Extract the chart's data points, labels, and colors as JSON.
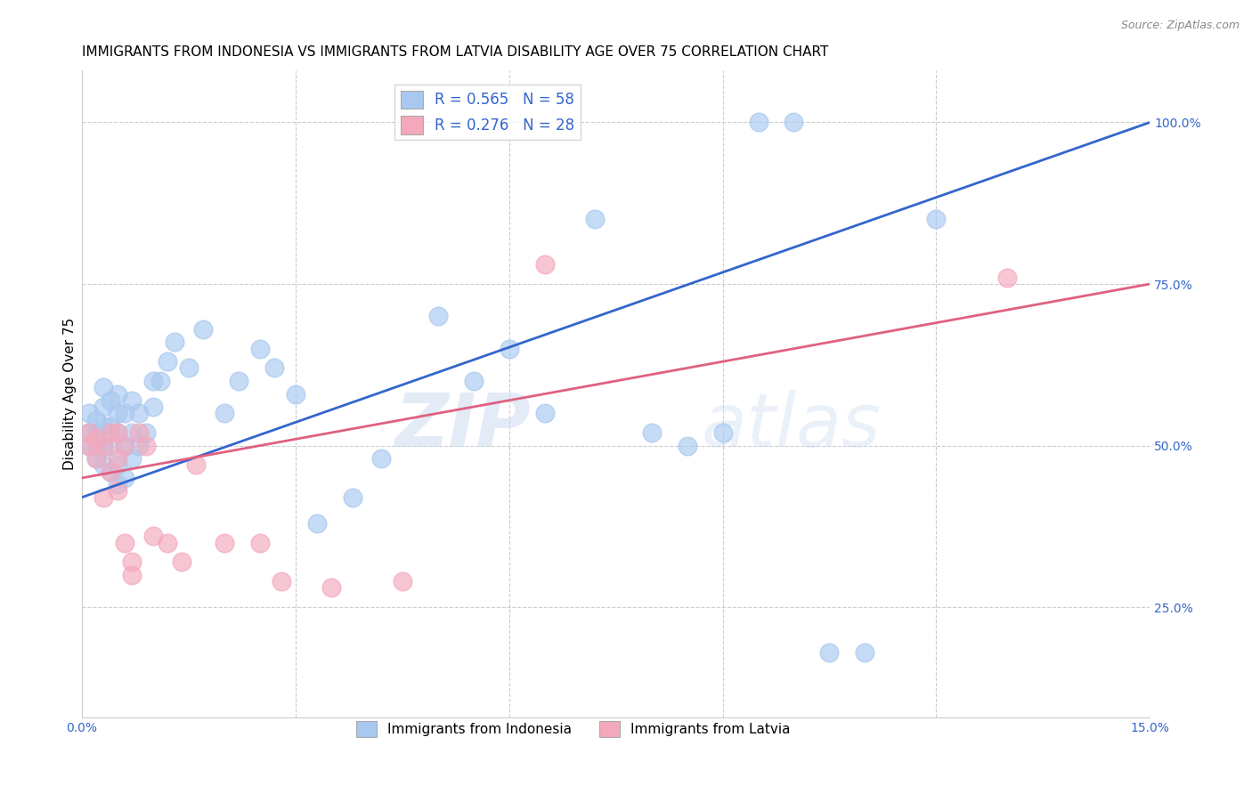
{
  "title": "IMMIGRANTS FROM INDONESIA VS IMMIGRANTS FROM LATVIA DISABILITY AGE OVER 75 CORRELATION CHART",
  "source_text": "Source: ZipAtlas.com",
  "ylabel": "Disability Age Over 75",
  "xlim": [
    0.0,
    0.15
  ],
  "ylim": [
    0.08,
    1.08
  ],
  "indonesia_color": "#A8C8F0",
  "latvia_color": "#F4A8BC",
  "indonesia_line_color": "#3366CC",
  "latvia_line_color": "#E06080",
  "R_indonesia": 0.565,
  "N_indonesia": 58,
  "R_latvia": 0.276,
  "N_latvia": 28,
  "legend_label_indonesia": "Immigrants from Indonesia",
  "legend_label_latvia": "Immigrants from Latvia",
  "watermark_text": "ZIPatlas",
  "indonesia_x": [
    0.001,
    0.001,
    0.001,
    0.002,
    0.002,
    0.002,
    0.002,
    0.003,
    0.003,
    0.003,
    0.003,
    0.003,
    0.004,
    0.004,
    0.004,
    0.004,
    0.005,
    0.005,
    0.005,
    0.005,
    0.005,
    0.006,
    0.006,
    0.006,
    0.007,
    0.007,
    0.007,
    0.008,
    0.008,
    0.009,
    0.01,
    0.01,
    0.011,
    0.012,
    0.013,
    0.015,
    0.017,
    0.02,
    0.022,
    0.025,
    0.027,
    0.03,
    0.033,
    0.038,
    0.042,
    0.05,
    0.055,
    0.06,
    0.065,
    0.072,
    0.08,
    0.085,
    0.09,
    0.095,
    0.1,
    0.105,
    0.11,
    0.12
  ],
  "indonesia_y": [
    0.5,
    0.52,
    0.55,
    0.48,
    0.5,
    0.52,
    0.54,
    0.47,
    0.5,
    0.53,
    0.56,
    0.59,
    0.46,
    0.5,
    0.53,
    0.57,
    0.44,
    0.47,
    0.52,
    0.55,
    0.58,
    0.45,
    0.5,
    0.55,
    0.48,
    0.52,
    0.57,
    0.5,
    0.55,
    0.52,
    0.56,
    0.6,
    0.6,
    0.63,
    0.66,
    0.62,
    0.68,
    0.55,
    0.6,
    0.65,
    0.62,
    0.58,
    0.38,
    0.42,
    0.48,
    0.7,
    0.6,
    0.65,
    0.55,
    0.85,
    0.52,
    0.5,
    0.52,
    1.0,
    1.0,
    0.18,
    0.18,
    0.85
  ],
  "latvia_x": [
    0.001,
    0.001,
    0.002,
    0.002,
    0.003,
    0.003,
    0.004,
    0.004,
    0.005,
    0.005,
    0.005,
    0.006,
    0.006,
    0.007,
    0.007,
    0.008,
    0.009,
    0.01,
    0.012,
    0.014,
    0.016,
    0.02,
    0.025,
    0.028,
    0.035,
    0.045,
    0.065,
    0.13
  ],
  "latvia_y": [
    0.5,
    0.52,
    0.48,
    0.51,
    0.42,
    0.5,
    0.46,
    0.52,
    0.43,
    0.48,
    0.52,
    0.35,
    0.5,
    0.3,
    0.32,
    0.52,
    0.5,
    0.36,
    0.35,
    0.32,
    0.47,
    0.35,
    0.35,
    0.29,
    0.28,
    0.29,
    0.78,
    0.76
  ],
  "background_color": "#ffffff",
  "grid_color": "#cccccc",
  "title_fontsize": 11,
  "axis_label_fontsize": 11,
  "tick_fontsize": 10,
  "legend_fontsize": 11
}
